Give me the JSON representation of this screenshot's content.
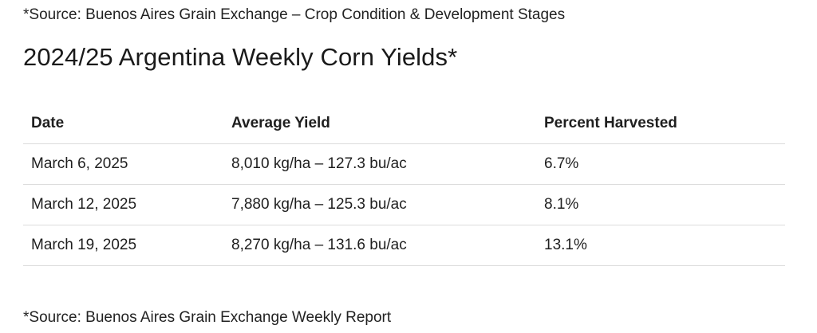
{
  "source_top": "*Source: Buenos Aires Grain Exchange – Crop Condition & Development Stages",
  "title": "2024/25 Argentina Weekly Corn Yields*",
  "table": {
    "headers": [
      "Date",
      "Average Yield",
      "Percent Harvested"
    ],
    "rows": [
      [
        "March 6, 2025",
        "8,010 kg/ha – 127.3 bu/ac",
        "6.7%"
      ],
      [
        "March 12, 2025",
        "7,880 kg/ha – 125.3 bu/ac",
        "8.1%"
      ],
      [
        "March 19, 2025",
        "8,270 kg/ha – 131.6 bu/ac",
        "13.1%"
      ]
    ]
  },
  "source_bottom": "*Source: Buenos Aires Grain Exchange Weekly Report"
}
